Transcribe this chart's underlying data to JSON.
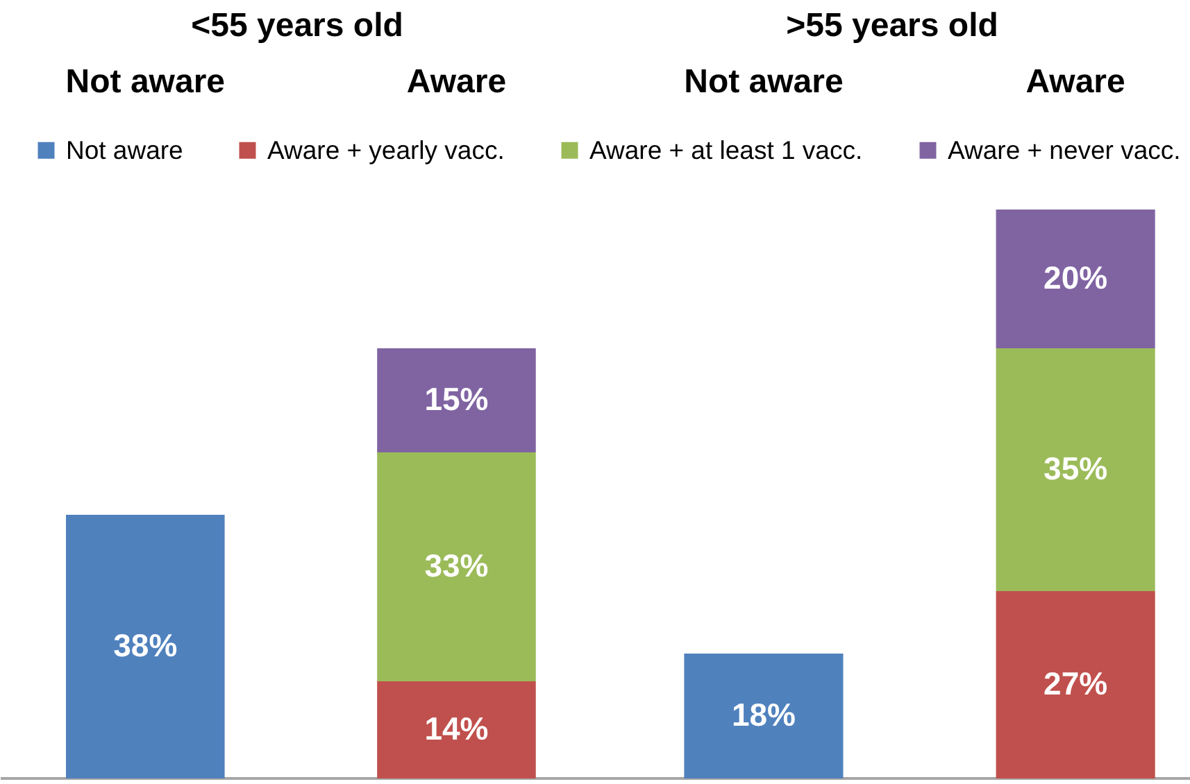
{
  "chart_data": [
    {
      "type": "bar",
      "title": "<55 years old",
      "categories": [
        "Not aware",
        "Aware"
      ],
      "stacked": true,
      "legend": "top",
      "series": [
        {
          "name": "Not aware",
          "color": "#4f81bd",
          "values": [
            38,
            null
          ],
          "value_labels": [
            "38%",
            null
          ]
        },
        {
          "name": "Aware + yearly vacc.",
          "color": "#c0504d",
          "values": [
            null,
            14
          ],
          "value_labels": [
            null,
            "14%"
          ]
        },
        {
          "name": "Aware + at least 1 vacc.",
          "color": "#9bbb59",
          "values": [
            null,
            33
          ],
          "value_labels": [
            null,
            "33%"
          ]
        },
        {
          "name": "Aware + never vacc.",
          "color": "#8064a2",
          "values": [
            null,
            15
          ],
          "value_labels": [
            null,
            "15%"
          ]
        }
      ]
    },
    {
      "type": "bar",
      "title": ">55 years old",
      "categories": [
        "Not aware",
        "Aware"
      ],
      "stacked": true,
      "series": [
        {
          "name": "Not aware",
          "color": "#4f81bd",
          "values": [
            18,
            null
          ],
          "value_labels": [
            "18%",
            null
          ]
        },
        {
          "name": "Aware + yearly vacc.",
          "color": "#c0504d",
          "values": [
            null,
            27
          ],
          "value_labels": [
            null,
            "27%"
          ]
        },
        {
          "name": "Aware + at least 1 vacc.",
          "color": "#9bbb59",
          "values": [
            null,
            35
          ],
          "value_labels": [
            null,
            "35%"
          ]
        },
        {
          "name": "Aware + never vacc.",
          "color": "#8064a2",
          "values": [
            null,
            20
          ],
          "value_labels": [
            null,
            "20%"
          ]
        }
      ]
    }
  ]
}
